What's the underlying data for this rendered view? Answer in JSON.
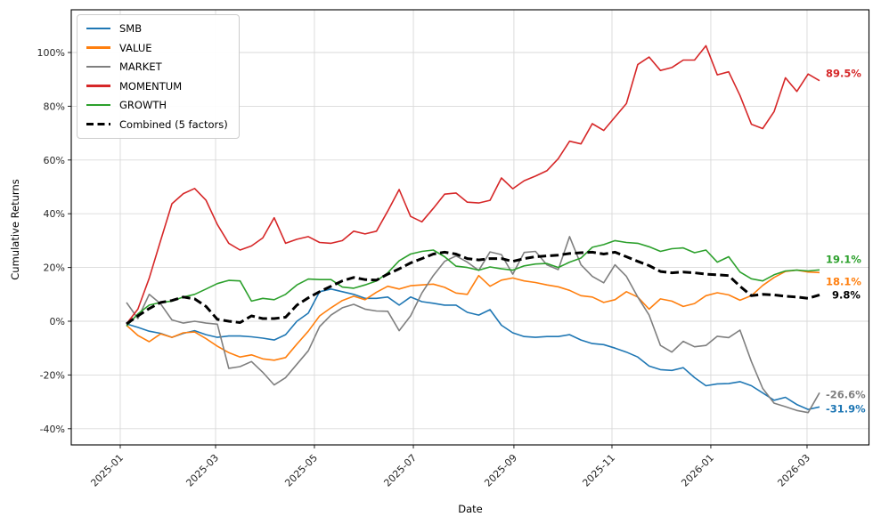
{
  "chart_data": {
    "type": "line",
    "title": "",
    "xlabel": "Date",
    "ylabel": "Cumulative Returns",
    "grid": true,
    "legend_position": "upper-left",
    "x_interval": "weekly",
    "x_start_date": "2025-01-05",
    "x_end_date": "2026-03-08",
    "n_points": 62,
    "ylim": [
      -46.5,
      116.5
    ],
    "y_tick_values": [
      100,
      80,
      60,
      40,
      20,
      0,
      -20,
      -40
    ],
    "y_tick_labels": [
      "100%",
      "80%",
      "60%",
      "40%",
      "20%",
      "0%",
      "-20%",
      "-40%"
    ],
    "x_tick_labels": [
      "2025-01",
      "2025-03",
      "2025-05",
      "2025-07",
      "2025-09",
      "2025-11",
      "2026-01",
      "2026-03"
    ],
    "x_tick_pos_weeks": [
      -0.55,
      7.84,
      16.54,
      25.25,
      34.1,
      42.73,
      51.43,
      59.9
    ],
    "series": [
      {
        "name": "SMB",
        "color": "#1f77b4",
        "style": "solid",
        "end_label": "-31.9%",
        "values": [
          -1,
          -2.3,
          -3.7,
          -4.5,
          -6,
          -4.5,
          -3.5,
          -5,
          -6,
          -5.5,
          -5.5,
          -5.8,
          -6.3,
          -7,
          -5,
          0,
          3,
          11,
          12,
          11,
          10,
          8.5,
          8.5,
          9,
          6,
          9,
          7.3,
          6.7,
          6,
          6,
          3.3,
          2.3,
          4.3,
          -1.5,
          -4.3,
          -5.7,
          -6,
          -5.7,
          -5.7,
          -5,
          -7,
          -8.3,
          -8.7,
          -10,
          -11.5,
          -13.3,
          -16.7,
          -18,
          -18.3,
          -17.3,
          -21,
          -24,
          -23.3,
          -23.2,
          -22.5,
          -24,
          -26.7,
          -29.4,
          -28.3,
          -31,
          -32.8,
          -31.9
        ]
      },
      {
        "name": "VALUE",
        "color": "#ff7f0e",
        "style": "solid",
        "end_label": "18.1%",
        "values": [
          -1.5,
          -5.3,
          -7.6,
          -4.7,
          -6,
          -4.3,
          -4,
          -6.5,
          -9.3,
          -11.7,
          -13.3,
          -12.5,
          -14,
          -14.5,
          -13.5,
          -8.5,
          -3.7,
          2,
          5,
          7.7,
          9.3,
          8,
          10.8,
          13,
          12,
          13.2,
          13.5,
          13.8,
          12.6,
          10.5,
          10,
          17,
          13,
          15.3,
          16.1,
          15,
          14.4,
          13.5,
          12.8,
          11.5,
          9.5,
          9,
          7,
          8,
          11,
          9,
          4.5,
          8.3,
          7.5,
          5.5,
          6.6,
          9.5,
          10.6,
          9.8,
          7.8,
          9.5,
          13.3,
          16.3,
          18.5,
          19,
          18.3,
          18.1
        ]
      },
      {
        "name": "MARKET",
        "color": "#7f7f7f",
        "style": "solid",
        "end_label": "-26.6%",
        "values": [
          7,
          1,
          10,
          6.5,
          0.5,
          -0.7,
          0,
          -0.7,
          -1.1,
          -17.5,
          -16.9,
          -15,
          -19,
          -23.7,
          -21,
          -16,
          -11,
          -2,
          2.3,
          5,
          6.3,
          4.5,
          3.8,
          3.7,
          -3.5,
          2,
          10.5,
          17,
          22.3,
          24.3,
          22,
          18.9,
          25.8,
          24.8,
          17.5,
          25.6,
          26,
          21,
          19.2,
          31.5,
          21,
          16.7,
          14.3,
          21,
          16.7,
          9,
          2.3,
          -9,
          -11.5,
          -7.5,
          -9.5,
          -9,
          -5.6,
          -6.1,
          -3.3,
          -15,
          -25,
          -30.5,
          -31.8,
          -33.2,
          -34,
          -26.6
        ]
      },
      {
        "name": "MOMENTUM",
        "color": "#d62728",
        "style": "solid",
        "end_label": "89.5%",
        "values": [
          -1,
          4.5,
          16,
          30,
          43.7,
          47.5,
          49.4,
          45,
          36,
          29,
          26.5,
          28,
          31,
          38.5,
          29,
          30.5,
          31.5,
          29.3,
          29,
          30,
          33.5,
          32.5,
          33.5,
          41,
          49,
          39,
          37,
          42,
          47.3,
          47.7,
          44.3,
          44,
          45,
          53.3,
          49.3,
          52.3,
          54,
          56,
          60.5,
          67,
          66,
          73.5,
          71,
          76,
          81,
          95.5,
          98.3,
          93.3,
          94.4,
          97.2,
          97.2,
          102.5,
          91.7,
          92.8,
          84,
          73.3,
          71.7,
          78,
          90.6,
          85.5,
          92,
          89.5
        ]
      },
      {
        "name": "GROWTH",
        "color": "#2ca02c",
        "style": "solid",
        "end_label": "19.1%",
        "values": [
          -1.8,
          2.7,
          6,
          7,
          7.5,
          9,
          10,
          12,
          14,
          15.2,
          15,
          7.5,
          8.5,
          8,
          10,
          13.5,
          15.7,
          15.5,
          15.5,
          12.7,
          12.3,
          13.5,
          15,
          18,
          22.5,
          25,
          26,
          26.5,
          24,
          20.5,
          20,
          19,
          20.2,
          19.5,
          19,
          20.6,
          21.3,
          21.5,
          20,
          22,
          23.5,
          27.5,
          28.5,
          30,
          29.3,
          29,
          27.7,
          26,
          27,
          27.3,
          25.5,
          26.5,
          22,
          24,
          18.3,
          15.8,
          15,
          17.3,
          18.7,
          19,
          18.7,
          19.1
        ]
      },
      {
        "name": "Combined (5 factors)",
        "color": "#000000",
        "style": "dashed",
        "end_label": "9.8%",
        "values": [
          -1,
          2,
          4.7,
          7,
          7.7,
          9,
          8.3,
          5.5,
          0.7,
          0,
          -0.5,
          2,
          1,
          1,
          1.5,
          6,
          8.7,
          11,
          13,
          15,
          16.3,
          15.5,
          15.3,
          17.5,
          19.5,
          21.7,
          23.3,
          25,
          25.7,
          25,
          23.3,
          22.8,
          23.3,
          23.3,
          22.3,
          23.3,
          24,
          24.3,
          24.6,
          25.2,
          25.5,
          25.7,
          25,
          25.7,
          24,
          22.3,
          20.7,
          18.5,
          18,
          18.3,
          18,
          17.5,
          17.3,
          17,
          13,
          9.5,
          10,
          9.8,
          9.3,
          9,
          8.5,
          9.8
        ]
      }
    ]
  }
}
